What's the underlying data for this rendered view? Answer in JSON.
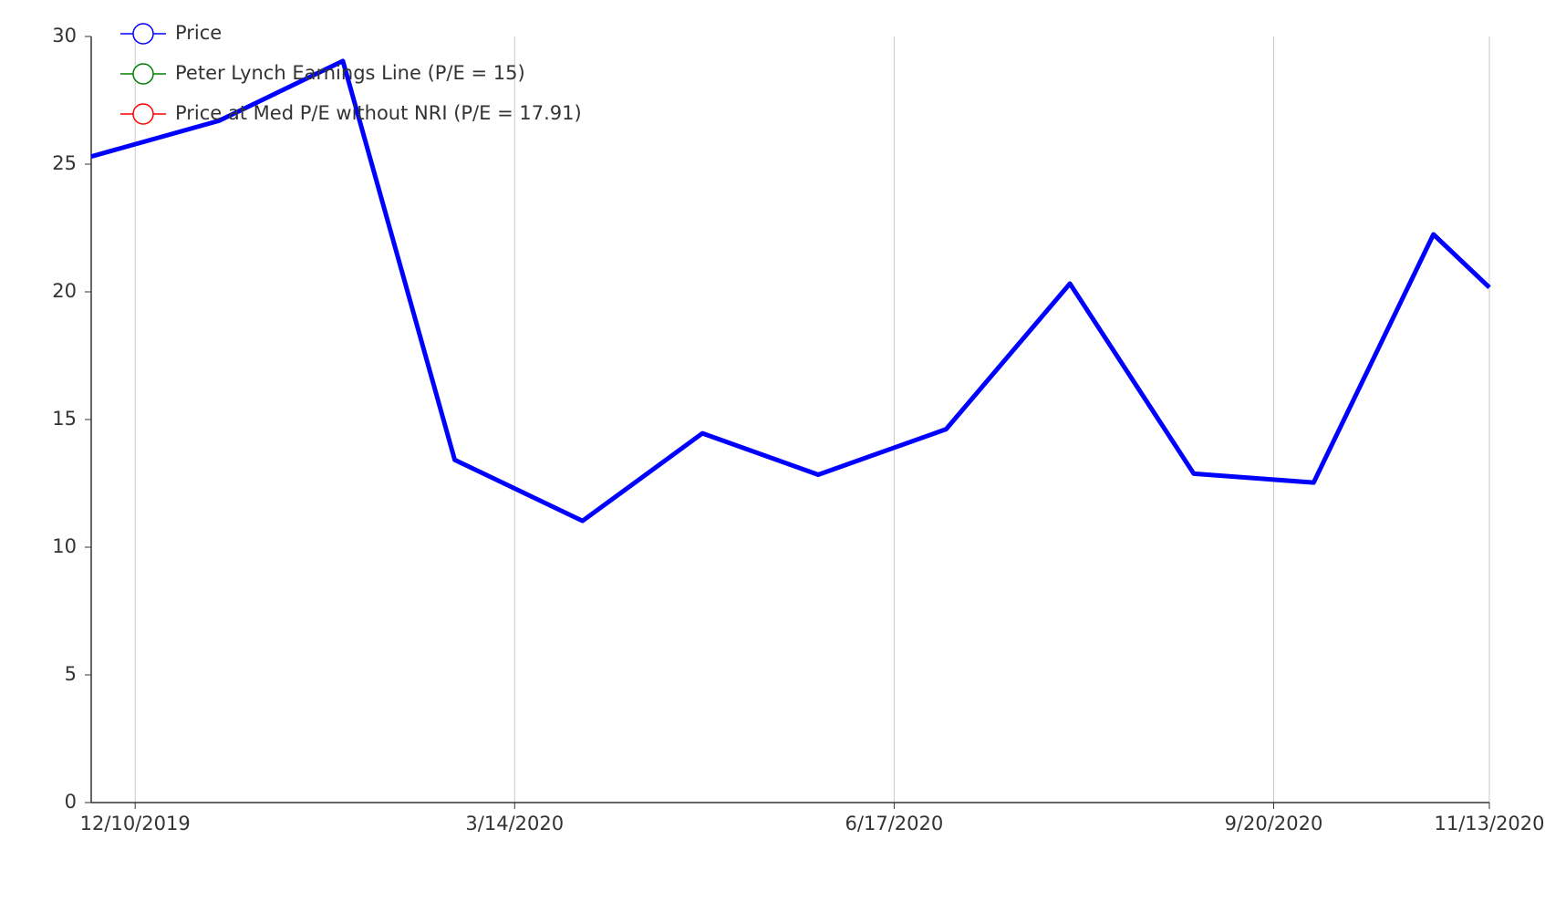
{
  "chart_data": {
    "type": "line",
    "x": [
      "11/29/2019",
      "12/31/2019",
      "1/31/2020",
      "2/28/2020",
      "3/31/2020",
      "4/30/2020",
      "5/29/2020",
      "6/30/2020",
      "7/31/2020",
      "8/31/2020",
      "9/30/2020",
      "10/30/2020",
      "11/13/2020"
    ],
    "series": [
      {
        "name": "Price",
        "color": "#0000ff",
        "values": [
          25.3,
          26.7,
          29.04,
          13.42,
          11.03,
          14.46,
          12.84,
          14.62,
          20.32,
          12.88,
          12.53,
          22.25,
          20.17
        ]
      },
      {
        "name": "Peter Lynch Earnings Line (P/E = 15)",
        "color": "#008000",
        "values": [
          null,
          null,
          null,
          null,
          null,
          null,
          null,
          null,
          null,
          null,
          null,
          null,
          null
        ]
      },
      {
        "name": "Price at Med P/E without NRI (P/E = 17.91)",
        "color": "#ff0000",
        "values": [
          null,
          null,
          null,
          null,
          null,
          null,
          null,
          null,
          null,
          null,
          null,
          null,
          null
        ]
      }
    ],
    "xlim": [
      "11/29/2019",
      "11/13/2020"
    ],
    "xticks": [
      "12/10/2019",
      "3/14/2020",
      "6/17/2020",
      "9/20/2020",
      "11/13/2020"
    ],
    "ylim": [
      0,
      30
    ],
    "yticks": [
      0,
      5,
      10,
      15,
      20,
      25,
      30
    ],
    "grid": "x",
    "legend": "top-left"
  }
}
